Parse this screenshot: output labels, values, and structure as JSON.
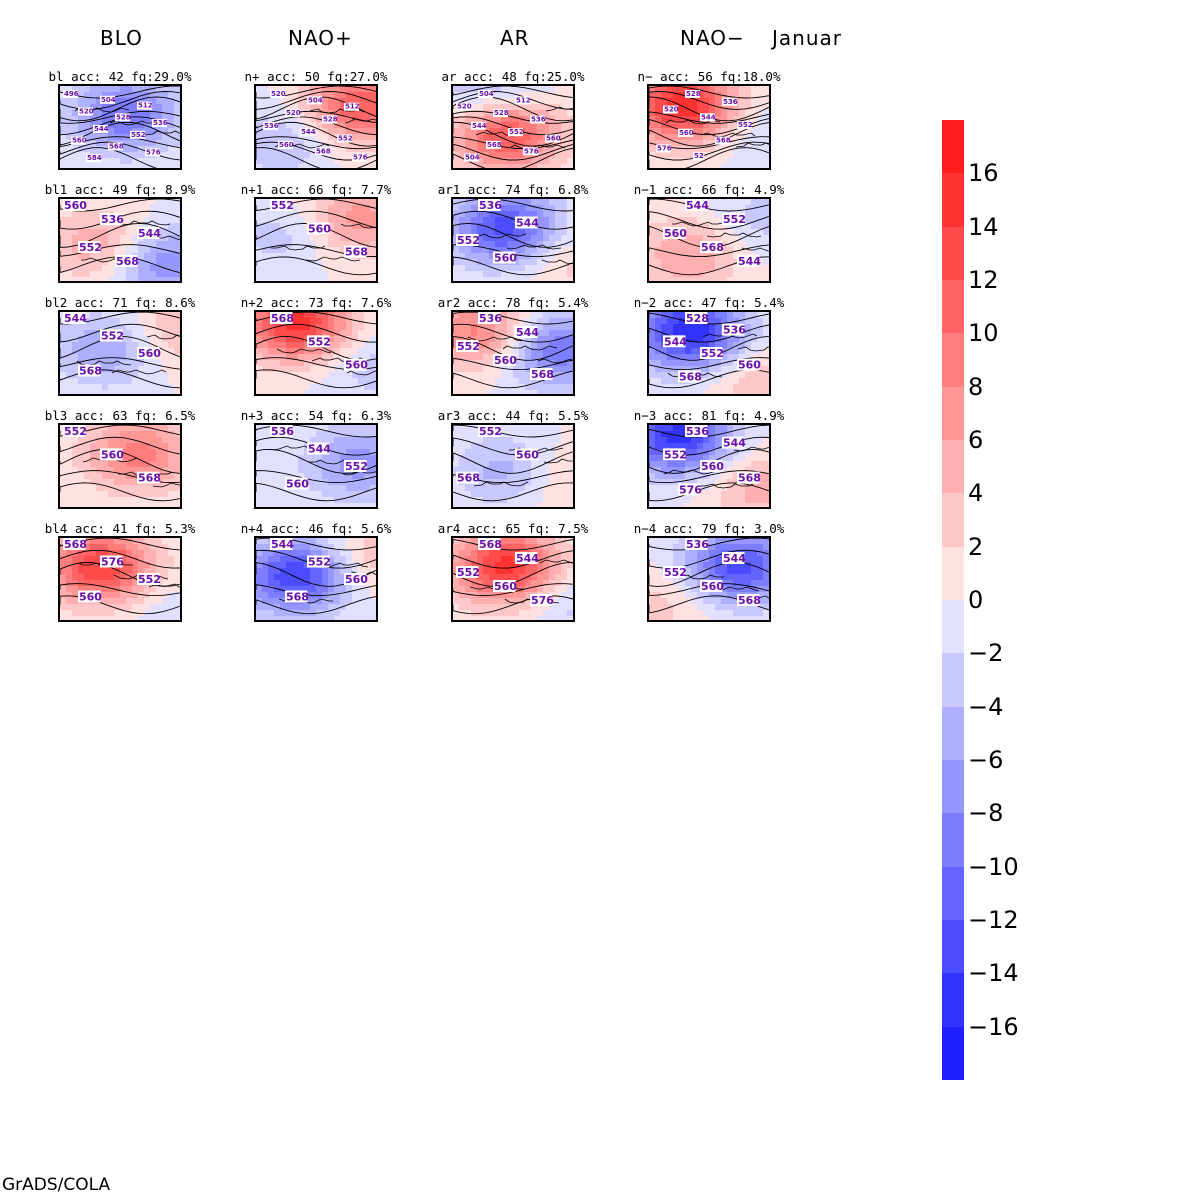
{
  "columns": [
    {
      "title": "BLO",
      "panels": [
        {
          "caption": "bl  acc: 42  fq:29.0%",
          "labels": [
            "496",
            "504",
            "512",
            "520",
            "528",
            "536",
            "544",
            "552",
            "560",
            "568",
            "576",
            "584"
          ]
        },
        {
          "caption": "bl1  acc: 49  fq: 8.9%",
          "labels": [
            "560",
            "536",
            "544",
            "552",
            "568"
          ]
        },
        {
          "caption": "bl2  acc: 71  fq: 8.6%",
          "labels": [
            "544",
            "552",
            "560",
            "568"
          ]
        },
        {
          "caption": "bl3  acc: 63  fq: 6.5%",
          "labels": [
            "552",
            "560",
            "568"
          ]
        },
        {
          "caption": "bl4  acc: 41  fq: 5.3%",
          "labels": [
            "568",
            "576",
            "552",
            "560"
          ]
        }
      ]
    },
    {
      "title": "NAO+",
      "panels": [
        {
          "caption": "n+  acc: 50  fq:27.0%",
          "labels": [
            "520",
            "504",
            "512",
            "520",
            "528",
            "536",
            "544",
            "552",
            "560",
            "568",
            "576"
          ]
        },
        {
          "caption": "n+1  acc: 66  fq: 7.7%",
          "labels": [
            "552",
            "560",
            "568"
          ]
        },
        {
          "caption": "n+2  acc: 73  fq: 7.6%",
          "labels": [
            "568",
            "552",
            "560"
          ]
        },
        {
          "caption": "n+3  acc: 54  fq: 6.3%",
          "labels": [
            "536",
            "544",
            "552",
            "560"
          ]
        },
        {
          "caption": "n+4  acc: 46  fq: 5.6%",
          "labels": [
            "544",
            "552",
            "560",
            "568"
          ]
        }
      ]
    },
    {
      "title": "AR",
      "panels": [
        {
          "caption": "ar  acc: 48  fq:25.0%",
          "labels": [
            "504",
            "512",
            "520",
            "528",
            "536",
            "544",
            "552",
            "560",
            "568",
            "576",
            "504"
          ]
        },
        {
          "caption": "ar1  acc: 74  fq: 6.8%",
          "labels": [
            "536",
            "544",
            "552",
            "560"
          ]
        },
        {
          "caption": "ar2  acc: 78  fq: 5.4%",
          "labels": [
            "536",
            "544",
            "552",
            "560",
            "568"
          ]
        },
        {
          "caption": "ar3  acc: 44  fq: 5.5%",
          "labels": [
            "552",
            "560",
            "568"
          ]
        },
        {
          "caption": "ar4  acc: 65  fq: 7.5%",
          "labels": [
            "568",
            "544",
            "552",
            "560",
            "576"
          ]
        }
      ]
    },
    {
      "title": "NAO−",
      "panels": [
        {
          "caption": "n−  acc: 56  fq:18.0%",
          "labels": [
            "528",
            "536",
            "520",
            "544",
            "552",
            "560",
            "568",
            "576",
            "52"
          ]
        },
        {
          "caption": "n−1  acc: 66  fq: 4.9%",
          "labels": [
            "544",
            "552",
            "560",
            "568",
            "544"
          ]
        },
        {
          "caption": "n−2  acc: 47  fq: 5.4%",
          "labels": [
            "528",
            "536",
            "544",
            "552",
            "560",
            "568"
          ]
        },
        {
          "caption": "n−3  acc: 81  fq: 4.9%",
          "labels": [
            "536",
            "544",
            "552",
            "560",
            "568",
            "576"
          ]
        },
        {
          "caption": "n−4  acc: 79  fq: 3.0%",
          "labels": [
            "536",
            "544",
            "552",
            "560",
            "568"
          ]
        }
      ]
    }
  ],
  "month": "Januar",
  "colorbar": {
    "labels": [
      "16",
      "14",
      "12",
      "10",
      "8",
      "6",
      "4",
      "2",
      "0",
      "−2",
      "−4",
      "−6",
      "−8",
      "−10",
      "−12",
      "−14",
      "−16"
    ],
    "colors_top_to_bottom": [
      "#ff1e1e",
      "#ff3232",
      "#ff4b4b",
      "#ff6464",
      "#ff7d7d",
      "#ff9696",
      "#ffafaf",
      "#ffc8c8",
      "#ffe1e1",
      "#e1e1ff",
      "#c8c8ff",
      "#afafff",
      "#9696ff",
      "#7d7dff",
      "#6464ff",
      "#4b4bff",
      "#3232ff",
      "#1e1eff"
    ]
  },
  "footer": "GrADS/COLA",
  "anomaly_maps": [
    [
      {
        "c": [
          0.5,
          0.3,
          -10
        ]
      },
      {
        "c": [
          0.3,
          0.5,
          6
        ],
        "d": [
          0.8,
          0.7,
          -8
        ]
      },
      {
        "c": [
          0.35,
          0.4,
          -6
        ],
        "d": [
          0.9,
          0.2,
          4
        ]
      },
      {
        "c": [
          0.6,
          0.3,
          9
        ]
      },
      {
        "c": [
          0.3,
          0.3,
          14
        ],
        "d": [
          0.9,
          0.9,
          -2
        ]
      }
    ],
    [
      {
        "c": [
          0.8,
          0.2,
          12
        ],
        "d": [
          0.2,
          0.6,
          -4
        ]
      },
      {
        "c": [
          0.8,
          0.2,
          7
        ],
        "d": [
          0.2,
          0.4,
          -3
        ]
      },
      {
        "c": [
          0.3,
          0.1,
          15
        ],
        "d": [
          0.9,
          0.6,
          -3
        ]
      },
      {
        "c": [
          0.8,
          0.4,
          -7
        ]
      },
      {
        "c": [
          0.3,
          0.4,
          -14
        ],
        "d": [
          0.9,
          0.2,
          4
        ]
      }
    ],
    [
      {
        "c": [
          0.4,
          0.5,
          14
        ],
        "d": [
          0.3,
          0.1,
          -6
        ]
      },
      {
        "c": [
          0.4,
          0.3,
          -13
        ],
        "d": [
          0.9,
          0.7,
          3
        ]
      },
      {
        "c": [
          0.2,
          0.2,
          9
        ],
        "d": [
          0.8,
          0.4,
          -10
        ]
      },
      {
        "c": [
          0.4,
          0.5,
          -5
        ],
        "d": [
          0.9,
          0.6,
          3
        ]
      },
      {
        "c": [
          0.4,
          0.3,
          15
        ],
        "d": [
          0.95,
          0.7,
          -3
        ]
      }
    ],
    [
      {
        "c": [
          0.25,
          0.2,
          16
        ],
        "d": [
          0.8,
          0.5,
          -2
        ]
      },
      {
        "c": [
          0.3,
          0.6,
          6
        ],
        "d": [
          0.9,
          0.2,
          -3
        ]
      },
      {
        "c": [
          0.3,
          0.2,
          -16
        ],
        "d": [
          0.9,
          0.8,
          4
        ]
      },
      {
        "c": [
          0.2,
          0.1,
          -15
        ],
        "d": [
          0.9,
          0.7,
          5
        ]
      },
      {
        "c": [
          0.7,
          0.3,
          -13
        ],
        "d": [
          0.1,
          0.7,
          3
        ]
      }
    ]
  ]
}
